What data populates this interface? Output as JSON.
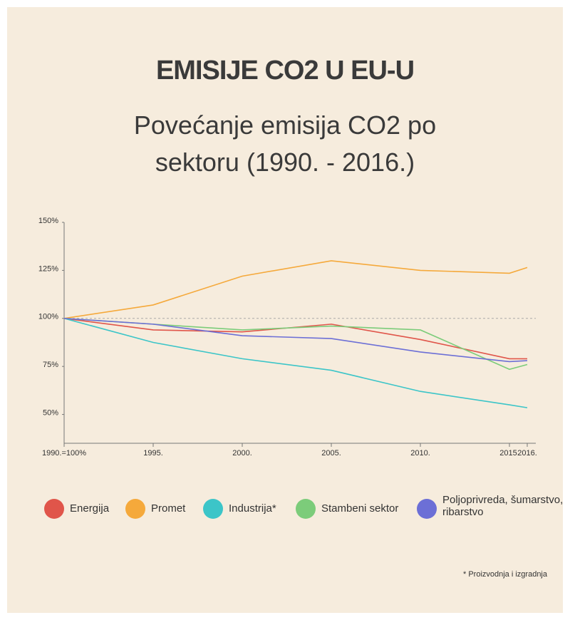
{
  "chart_data": {
    "type": "line",
    "title": "EMISIJE CO2 U EU-U",
    "subtitle": "Povećanje emisija CO2 po sektoru (1990. - 2016.)",
    "x": [
      1990,
      1995,
      2000,
      2005,
      2010,
      2015,
      2016
    ],
    "xlim": [
      1990,
      2016
    ],
    "xticks": [
      {
        "value": 1990,
        "label": "1990.=100%"
      },
      {
        "value": 1995,
        "label": "1995."
      },
      {
        "value": 2000,
        "label": "2000."
      },
      {
        "value": 2005,
        "label": "2005."
      },
      {
        "value": 2010,
        "label": "2010."
      },
      {
        "value": 2015,
        "label": "2015."
      },
      {
        "value": 2016,
        "label": "2016."
      }
    ],
    "ylim": [
      35,
      150
    ],
    "yticks": [
      {
        "value": 150,
        "label": "150%"
      },
      {
        "value": 125,
        "label": "125%"
      },
      {
        "value": 100,
        "label": "100%"
      },
      {
        "value": 75,
        "label": "75%"
      },
      {
        "value": 50,
        "label": "50%"
      }
    ],
    "reference_line": 100,
    "series": [
      {
        "name": "Energija",
        "color": "#e0554a",
        "values": [
          100,
          94,
          93,
          97,
          89,
          79,
          79
        ]
      },
      {
        "name": "Promet",
        "color": "#f5a93b",
        "values": [
          100,
          107,
          122,
          130,
          125,
          123.5,
          126.5
        ]
      },
      {
        "name": "Industrija*",
        "color": "#3cc5c8",
        "values": [
          100,
          87.5,
          79,
          73,
          62,
          55,
          53.5
        ]
      },
      {
        "name": "Stambeni sektor",
        "color": "#7ccc7a",
        "values": [
          100,
          97,
          94,
          96,
          94,
          73.5,
          76
        ]
      },
      {
        "name": "Poljoprivreda, šumarstvo, ribarstvo",
        "color": "#6c6fd6",
        "values": [
          100,
          97,
          91,
          89.5,
          82.5,
          77.5,
          78
        ]
      }
    ],
    "footnote": "* Proizvodnja i izgradnja"
  }
}
